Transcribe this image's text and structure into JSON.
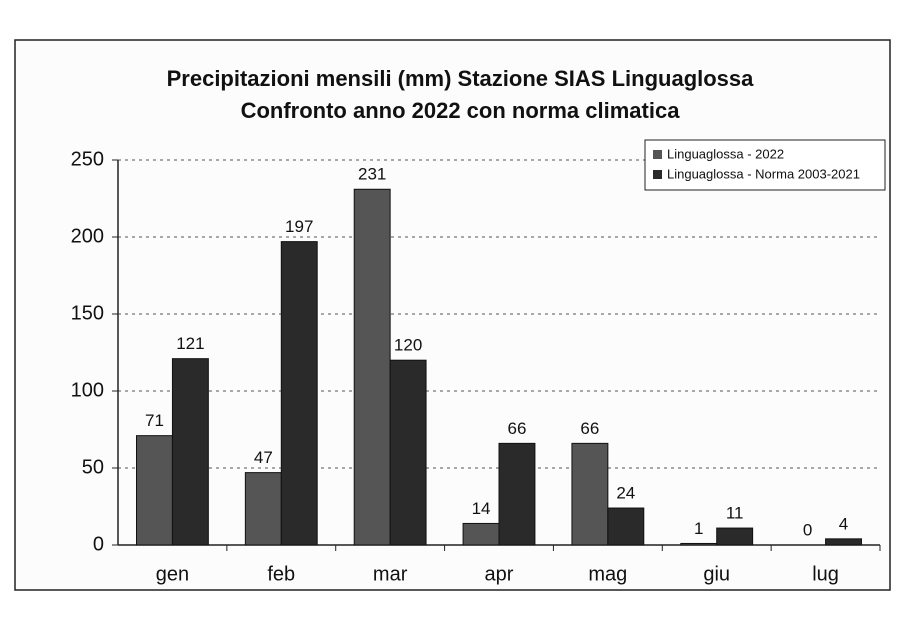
{
  "chart_data": {
    "type": "bar",
    "title": "Precipitazioni mensili (mm) Stazione SIAS Linguaglossa",
    "subtitle": "Confronto anno 2022 con norma climatica",
    "categories": [
      "gen",
      "feb",
      "mar",
      "apr",
      "mag",
      "giu",
      "lug"
    ],
    "series": [
      {
        "name": "Linguaglossa - 2022",
        "color": "#555555",
        "values": [
          71,
          47,
          231,
          14,
          66,
          1,
          0
        ]
      },
      {
        "name": "Linguaglossa - Norma 2003-2021",
        "color": "#2a2a2a",
        "values": [
          121,
          197,
          120,
          66,
          24,
          11,
          4
        ]
      }
    ],
    "ylim": [
      0,
      250
    ],
    "yticks": [
      0,
      50,
      100,
      150,
      200,
      250
    ],
    "grid": true,
    "legend": "top-right"
  }
}
